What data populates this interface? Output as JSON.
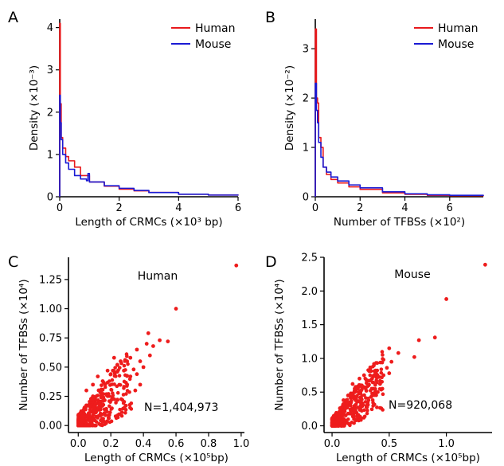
{
  "chart_data": [
    {
      "panel": "A",
      "type": "line",
      "xlabel": "Length of CRMCs (×10³ bp)",
      "ylabel": "Density (×10⁻³)",
      "xlim": [
        0,
        6
      ],
      "ylim": [
        0,
        4.2
      ],
      "xticks": [
        0,
        2,
        4,
        6
      ],
      "yticks": [
        0,
        1,
        2,
        3,
        4
      ],
      "legend_position": "top-right",
      "series": [
        {
          "name": "Human",
          "color": "#e8191c",
          "x": [
            0,
            0.02,
            0.05,
            0.1,
            0.2,
            0.3,
            0.5,
            0.7,
            1.0,
            1.5,
            2.0,
            2.5,
            3.0,
            4.0,
            5.0,
            6.0
          ],
          "y": [
            4.1,
            2.2,
            1.4,
            1.15,
            0.95,
            0.85,
            0.7,
            0.5,
            0.35,
            0.25,
            0.18,
            0.14,
            0.1,
            0.06,
            0.04,
            0.03
          ]
        },
        {
          "name": "Mouse",
          "color": "#1a1ad4",
          "x": [
            0,
            0.02,
            0.05,
            0.1,
            0.2,
            0.3,
            0.5,
            0.7,
            0.9,
            0.95,
            1.0,
            1.5,
            2.0,
            2.5,
            3.0,
            4.0,
            5.0,
            6.0
          ],
          "y": [
            2.4,
            1.75,
            1.35,
            1.0,
            0.8,
            0.65,
            0.5,
            0.42,
            0.38,
            0.55,
            0.35,
            0.26,
            0.2,
            0.15,
            0.1,
            0.06,
            0.04,
            0.03
          ]
        }
      ]
    },
    {
      "panel": "B",
      "type": "line",
      "xlabel": "Number of TFBSs (×10²)",
      "ylabel": "Density (×10⁻²)",
      "xlim": [
        0,
        7.5
      ],
      "ylim": [
        0,
        3.6
      ],
      "xticks": [
        0,
        2,
        4,
        6
      ],
      "yticks": [
        0,
        1,
        2,
        3
      ],
      "legend_position": "top-right",
      "series": [
        {
          "name": "Human",
          "color": "#e8191c",
          "x": [
            0,
            0.05,
            0.1,
            0.15,
            0.25,
            0.35,
            0.5,
            0.7,
            1.0,
            1.5,
            2.0,
            3.0,
            4.0,
            5.0,
            6.0,
            7.5
          ],
          "y": [
            3.4,
            2.0,
            1.9,
            1.2,
            1.0,
            0.6,
            0.45,
            0.35,
            0.28,
            0.2,
            0.15,
            0.08,
            0.05,
            0.03,
            0.02,
            0.01
          ]
        },
        {
          "name": "Mouse",
          "color": "#1a1ad4",
          "x": [
            0,
            0.05,
            0.1,
            0.15,
            0.25,
            0.35,
            0.5,
            0.7,
            1.0,
            1.5,
            2.0,
            3.0,
            4.0,
            5.0,
            6.0,
            7.5
          ],
          "y": [
            2.3,
            1.75,
            1.5,
            1.1,
            0.8,
            0.6,
            0.5,
            0.4,
            0.32,
            0.24,
            0.18,
            0.1,
            0.06,
            0.04,
            0.03,
            0.02
          ]
        }
      ]
    },
    {
      "panel": "C",
      "type": "scatter",
      "xlabel": "Length of CRMCs (×10⁵bp)",
      "ylabel": "Number of TFBSs (×10⁴)",
      "xlim": [
        -0.06,
        1.02
      ],
      "ylim": [
        -0.06,
        1.44
      ],
      "xticks": [
        0.0,
        0.2,
        0.4,
        0.6,
        0.8,
        1.0
      ],
      "xticklabels": [
        "0.0",
        "0.2",
        "0.4",
        "0.6",
        "0.8",
        "1.0"
      ],
      "yticks": [
        0.0,
        0.25,
        0.5,
        0.75,
        1.0,
        1.25
      ],
      "yticklabels": [
        "0.00",
        "0.25",
        "0.50",
        "0.75",
        "1.00",
        "1.25"
      ],
      "color": "#ee1c1c",
      "annotation_title": "Human",
      "annotation_n": "N=1,404,973",
      "points": [
        [
          0.97,
          1.37
        ],
        [
          0.6,
          1.0
        ],
        [
          0.55,
          0.72
        ],
        [
          0.5,
          0.73
        ],
        [
          0.43,
          0.79
        ],
        [
          0.42,
          0.7
        ],
        [
          0.46,
          0.68
        ],
        [
          0.44,
          0.6
        ],
        [
          0.36,
          0.65
        ],
        [
          0.38,
          0.55
        ],
        [
          0.32,
          0.58
        ],
        [
          0.26,
          0.55
        ],
        [
          0.22,
          0.58
        ],
        [
          0.24,
          0.52
        ],
        [
          0.3,
          0.55
        ],
        [
          0.34,
          0.48
        ],
        [
          0.4,
          0.5
        ],
        [
          0.28,
          0.47
        ],
        [
          0.18,
          0.47
        ],
        [
          0.12,
          0.42
        ],
        [
          0.2,
          0.44
        ],
        [
          0.36,
          0.44
        ],
        [
          0.38,
          0.35
        ],
        [
          0.35,
          0.3
        ],
        [
          0.3,
          0.35
        ],
        [
          0.24,
          0.46
        ],
        [
          0.15,
          0.38
        ],
        [
          0.09,
          0.35
        ],
        [
          0.05,
          0.3
        ],
        [
          0.32,
          0.42
        ]
      ]
    },
    {
      "panel": "D",
      "type": "scatter",
      "xlabel": "Length of CRMCs (×10⁵bp)",
      "ylabel": "Number of TFBSs (×10⁴)",
      "xlim": [
        -0.07,
        1.4
      ],
      "ylim": [
        -0.1,
        2.5
      ],
      "xticks": [
        0.0,
        0.5,
        1.0
      ],
      "xticklabels": [
        "0.0",
        "0.5",
        "1.0"
      ],
      "yticks": [
        0.0,
        0.5,
        1.0,
        1.5,
        2.0,
        2.5
      ],
      "yticklabels": [
        "0.0",
        "0.5",
        "1.0",
        "1.5",
        "2.0",
        "2.5"
      ],
      "color": "#ee1c1c",
      "annotation_title": "Mouse",
      "annotation_n": "N=920,068",
      "points": [
        [
          1.34,
          2.39
        ],
        [
          1.0,
          1.88
        ],
        [
          0.9,
          1.31
        ],
        [
          0.76,
          1.27
        ],
        [
          0.72,
          1.02
        ],
        [
          0.58,
          1.08
        ],
        [
          0.5,
          1.15
        ],
        [
          0.52,
          0.95
        ],
        [
          0.45,
          0.98
        ],
        [
          0.48,
          0.86
        ],
        [
          0.5,
          0.78
        ],
        [
          0.45,
          0.75
        ],
        [
          0.38,
          0.82
        ],
        [
          0.4,
          0.72
        ],
        [
          0.35,
          0.7
        ],
        [
          0.3,
          0.68
        ],
        [
          0.28,
          0.75
        ],
        [
          0.42,
          0.62
        ],
        [
          0.36,
          0.55
        ],
        [
          0.32,
          0.6
        ],
        [
          0.26,
          0.6
        ],
        [
          0.22,
          0.55
        ],
        [
          0.2,
          0.5
        ],
        [
          0.18,
          0.62
        ],
        [
          0.24,
          0.7
        ],
        [
          0.3,
          0.52
        ],
        [
          0.14,
          0.45
        ],
        [
          0.44,
          0.55
        ],
        [
          0.4,
          0.5
        ],
        [
          0.1,
          0.38
        ]
      ]
    }
  ]
}
